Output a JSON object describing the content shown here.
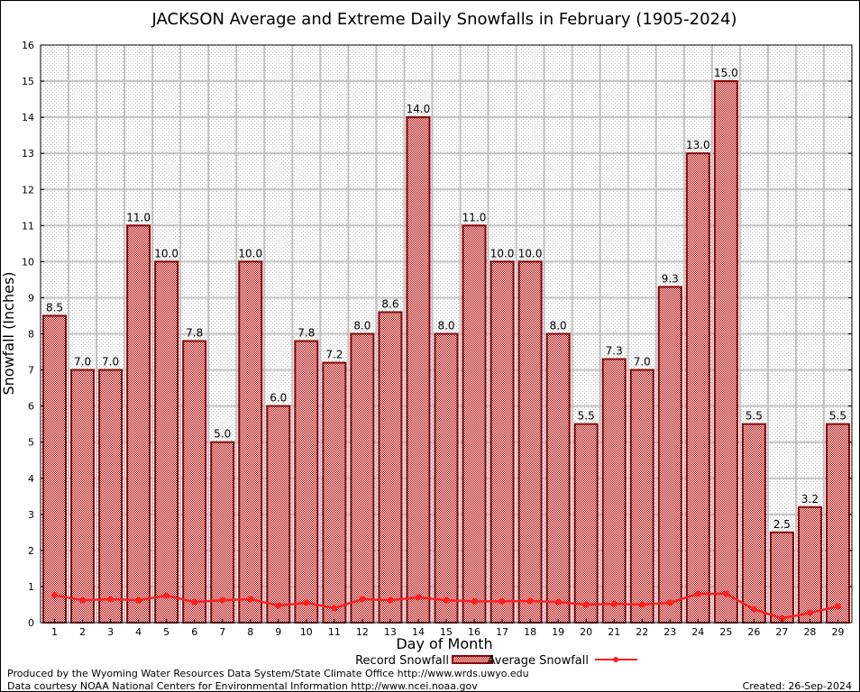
{
  "chart_data": {
    "type": "bar",
    "title": "JACKSON Average and Extreme Daily Snowfalls in February (1905-2024)",
    "xlabel": "Day of Month",
    "ylabel": "Snowfall (Inches)",
    "ylim": [
      0,
      16
    ],
    "yticks": [
      0,
      1,
      2,
      3,
      4,
      5,
      6,
      7,
      8,
      9,
      10,
      11,
      12,
      13,
      14,
      15,
      16
    ],
    "grid": true,
    "legend_placement": "bottom",
    "categories": [
      "1",
      "2",
      "3",
      "4",
      "5",
      "6",
      "7",
      "8",
      "9",
      "10",
      "11",
      "12",
      "13",
      "14",
      "15",
      "16",
      "17",
      "18",
      "19",
      "20",
      "21",
      "22",
      "23",
      "24",
      "25",
      "26",
      "27",
      "28",
      "29"
    ],
    "series": [
      {
        "name": "Record Snowfall",
        "type": "bar",
        "color": "#a00000",
        "values": [
          8.5,
          7.0,
          7.0,
          11.0,
          10.0,
          7.8,
          5.0,
          10.0,
          6.0,
          7.8,
          7.2,
          8.0,
          8.6,
          14.0,
          8.0,
          11.0,
          10.0,
          10.0,
          8.0,
          5.5,
          7.3,
          7.0,
          9.3,
          13.0,
          15.0,
          5.5,
          2.5,
          3.2,
          5.5
        ],
        "labels": [
          "8.5",
          "7.0",
          "7.0",
          "11.0",
          "10.0",
          "7.8",
          "5.0",
          "10.0",
          "6.0",
          "7.8",
          "7.2",
          "8.0",
          "8.6",
          "14.0",
          "8.0",
          "11.0",
          "10.0",
          "10.0",
          "8.0",
          "5.5",
          "7.3",
          "7.0",
          "9.3",
          "13.0",
          "15.0",
          "5.5",
          "2.5",
          "3.2",
          "5.5"
        ]
      },
      {
        "name": "Average Snowfall",
        "type": "line",
        "color": "#ff2020",
        "values": [
          0.76,
          0.62,
          0.65,
          0.62,
          0.75,
          0.57,
          0.62,
          0.65,
          0.47,
          0.55,
          0.4,
          0.65,
          0.62,
          0.7,
          0.62,
          0.59,
          0.59,
          0.6,
          0.57,
          0.5,
          0.52,
          0.5,
          0.55,
          0.8,
          0.8,
          0.37,
          0.12,
          0.27,
          0.45
        ]
      }
    ]
  },
  "footer": {
    "produced_by": "Produced by the Wyoming Water Resources Data System/State Climate Office http://www.wrds.uwyo.edu",
    "data_courtesy": "Data courtesy NOAA National Centers for Environmental Information http://www.ncei.noaa.gov",
    "created": "Created: 26-Sep-2024"
  }
}
